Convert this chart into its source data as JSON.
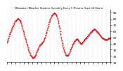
{
  "title": "Milwaukee Weather Outdoor Humidity Every 5 Minutes (Last 24 Hours)",
  "line_color": "#dd0000",
  "background_color": "#ffffff",
  "grid_color": "#999999",
  "ylim": [
    10,
    95
  ],
  "yticks": [
    10,
    20,
    30,
    40,
    50,
    60,
    70,
    80,
    90
  ],
  "humidity_values": [
    42,
    44,
    46,
    49,
    52,
    55,
    57,
    59,
    61,
    63,
    65,
    67,
    69,
    71,
    73,
    75,
    76,
    77,
    78,
    79,
    80,
    80,
    80,
    79,
    78,
    77,
    75,
    73,
    70,
    67,
    64,
    61,
    58,
    55,
    52,
    49,
    46,
    43,
    40,
    37,
    34,
    31,
    28,
    26,
    24,
    22,
    20,
    19,
    18,
    17,
    17,
    17,
    18,
    19,
    20,
    22,
    24,
    26,
    28,
    30,
    32,
    34,
    36,
    37,
    38,
    39,
    40,
    41,
    42,
    43,
    44,
    46,
    48,
    50,
    53,
    56,
    59,
    62,
    65,
    68,
    71,
    74,
    77,
    79,
    81,
    83,
    85,
    86,
    87,
    88,
    89,
    89,
    89,
    88,
    87,
    85,
    83,
    80,
    77,
    73,
    69,
    65,
    60,
    55,
    50,
    45,
    41,
    37,
    34,
    31,
    28,
    26,
    24,
    22,
    21,
    20,
    20,
    21,
    22,
    24,
    26,
    28,
    30,
    32,
    34,
    36,
    38,
    40,
    41,
    43,
    44,
    45,
    46,
    47,
    47,
    47,
    46,
    45,
    44,
    43,
    42,
    41,
    40,
    40,
    41,
    42,
    43,
    44,
    45,
    46,
    47,
    48,
    49,
    50,
    51,
    52,
    53,
    54,
    55,
    56,
    57,
    58,
    59,
    60,
    61,
    62,
    62,
    63,
    63,
    63,
    62,
    61,
    60,
    59,
    58,
    57,
    56,
    55,
    54,
    53,
    52,
    51,
    50,
    49,
    48,
    48,
    47,
    47,
    46,
    46,
    46,
    46,
    46,
    47,
    47,
    48,
    48,
    49,
    49,
    50
  ]
}
